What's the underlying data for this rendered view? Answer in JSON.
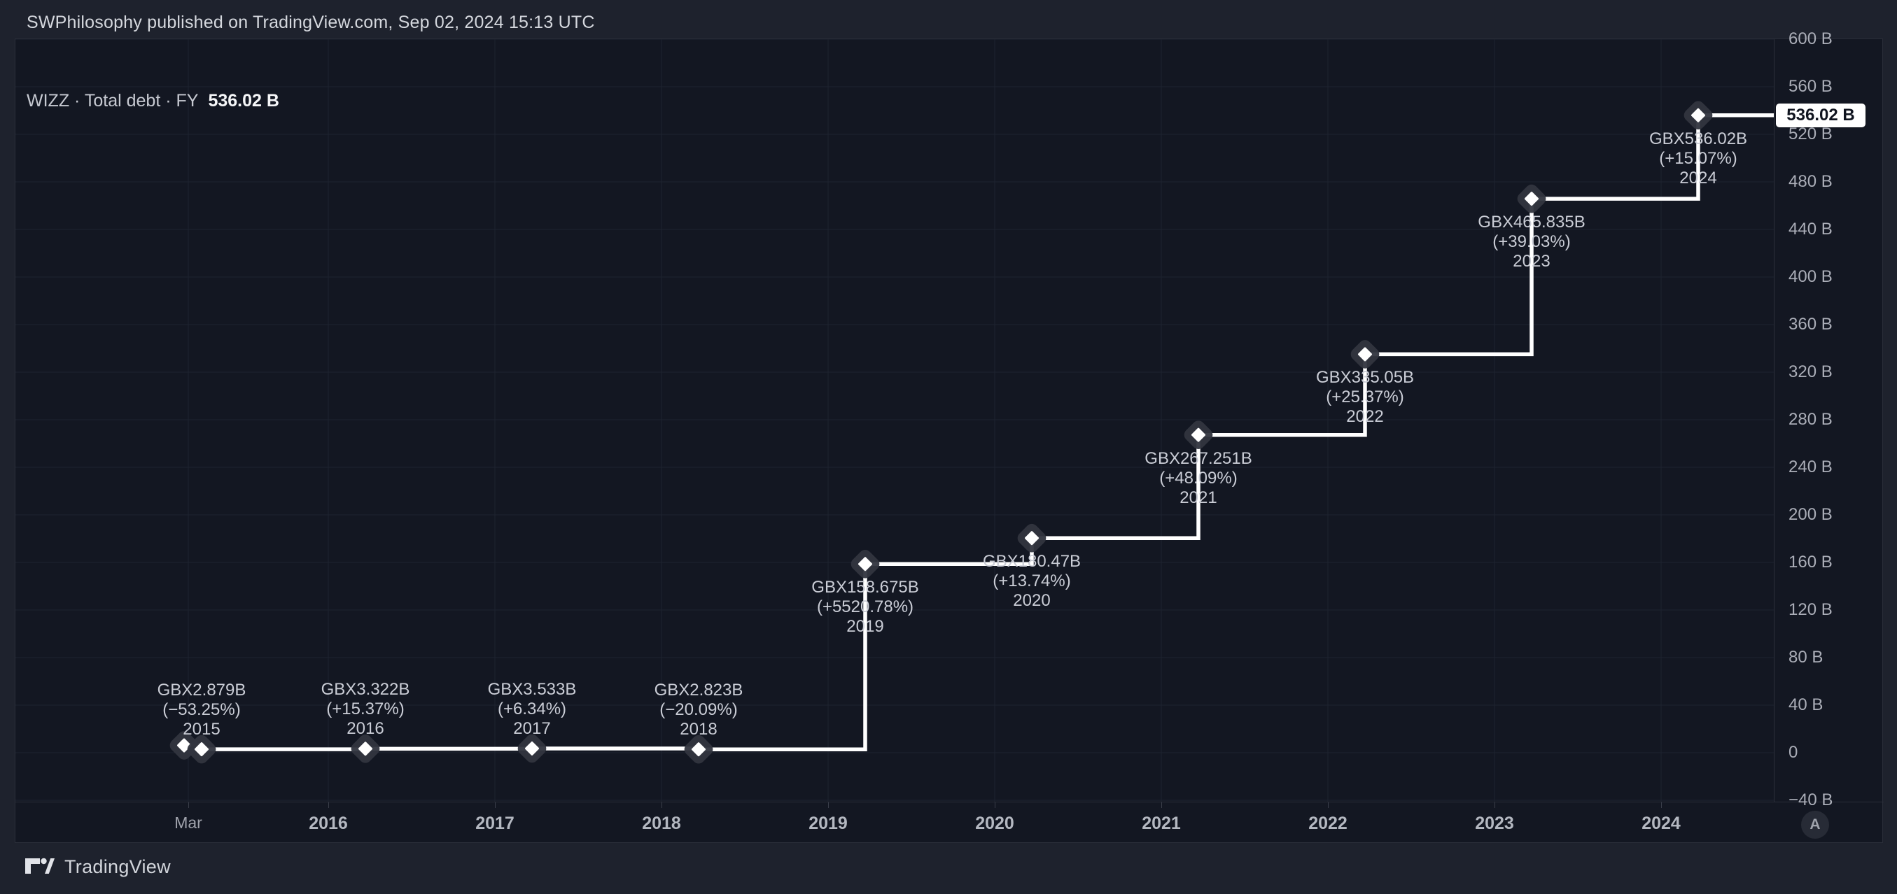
{
  "header": {
    "credit": "SWPhilosophy published on TradingView.com, Sep 02, 2024 15:13 UTC"
  },
  "legend": {
    "title": "WIZZ · Total debt · FY",
    "value": "536.02 B"
  },
  "chart_data": {
    "type": "line",
    "subtype": "step-after-with-diamond-markers",
    "title": "WIZZ · Total debt · FY",
    "unit": "GBX, billions",
    "grid": true,
    "legend_position": "top-left",
    "ylim": [
      -40,
      600
    ],
    "y_tick_step": 40,
    "x_ticks": [
      "Mar",
      "2016",
      "2017",
      "2018",
      "2019",
      "2020",
      "2021",
      "2022",
      "2023",
      "2024"
    ],
    "points": [
      {
        "fiscal_year": "",
        "value": 6.16,
        "value_label": "",
        "change_label": ""
      },
      {
        "fiscal_year": "2015",
        "value": 2.879,
        "value_label": "GBX2.879B",
        "change_label": "(−53.25%)"
      },
      {
        "fiscal_year": "2016",
        "value": 3.322,
        "value_label": "GBX3.322B",
        "change_label": "(+15.37%)"
      },
      {
        "fiscal_year": "2017",
        "value": 3.533,
        "value_label": "GBX3.533B",
        "change_label": "(+6.34%)"
      },
      {
        "fiscal_year": "2018",
        "value": 2.823,
        "value_label": "GBX2.823B",
        "change_label": "(−20.09%)"
      },
      {
        "fiscal_year": "2019",
        "value": 158.675,
        "value_label": "GBX158.675B",
        "change_label": "(+5520.78%)"
      },
      {
        "fiscal_year": "2020",
        "value": 180.47,
        "value_label": "GBX180.47B",
        "change_label": "(+13.74%)"
      },
      {
        "fiscal_year": "2021",
        "value": 267.251,
        "value_label": "GBX267.251B",
        "change_label": "(+48.09%)"
      },
      {
        "fiscal_year": "2022",
        "value": 335.05,
        "value_label": "GBX335.05B",
        "change_label": "(+25.37%)"
      },
      {
        "fiscal_year": "2023",
        "value": 465.835,
        "value_label": "GBX465.835B",
        "change_label": "(+39.03%)"
      },
      {
        "fiscal_year": "2024",
        "value": 536.02,
        "value_label": "GBX536.02B",
        "change_label": "(+15.07%)"
      }
    ]
  },
  "y_axis": {
    "ticks": [
      {
        "value": 600,
        "label": "600 B"
      },
      {
        "value": 560,
        "label": "560 B"
      },
      {
        "value": 520,
        "label": "520 B"
      },
      {
        "value": 480,
        "label": "480 B"
      },
      {
        "value": 440,
        "label": "440 B"
      },
      {
        "value": 400,
        "label": "400 B"
      },
      {
        "value": 360,
        "label": "360 B"
      },
      {
        "value": 320,
        "label": "320 B"
      },
      {
        "value": 280,
        "label": "280 B"
      },
      {
        "value": 240,
        "label": "240 B"
      },
      {
        "value": 200,
        "label": "200 B"
      },
      {
        "value": 160,
        "label": "160 B"
      },
      {
        "value": 120,
        "label": "120 B"
      },
      {
        "value": 80,
        "label": "80 B"
      },
      {
        "value": 40,
        "label": "40 B"
      },
      {
        "value": 0,
        "label": "0"
      },
      {
        "value": -40,
        "label": "−40 B"
      }
    ],
    "last_price_label": "536.02 B",
    "auto_button_label": "A"
  },
  "footer": {
    "brand": "TradingView"
  },
  "colors": {
    "outer_bg": "#1e222d",
    "chart_bg": "#131722",
    "line": "#ffffff",
    "marker_halo": "#31353f",
    "grid": "#1e2330",
    "price_tag_bg": "#ffffff",
    "price_tag_text": "#10141f"
  }
}
